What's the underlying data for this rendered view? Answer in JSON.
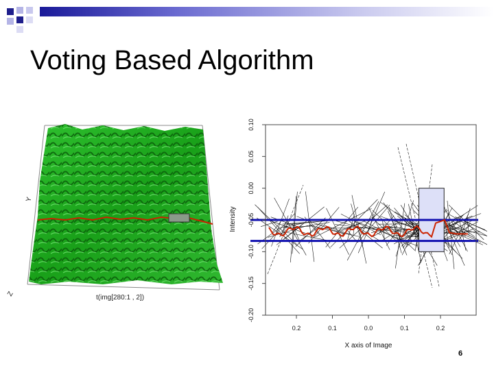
{
  "slide": {
    "title": "Voting Based Algorithm",
    "page_number": "6"
  },
  "colors": {
    "accent_dark": "#1a1a99",
    "deco_blue": "#1e1e8c",
    "deco_light": "#b4b4e6",
    "terrain_green": "#1faa1f",
    "profile_red": "#cc2200",
    "band_blue": "#1010b0",
    "window_fill": "#dde0f8"
  },
  "surface_plot": {
    "axis_labels": {
      "y": "Y",
      "z": "Z",
      "x": "t(img[280:1 , 2])"
    }
  },
  "chart_data": {
    "type": "line",
    "xlabel": "X axis of Image",
    "ylabel": "Intensity",
    "x_tick_labels": [
      "0.2",
      "0.1",
      "0.0",
      "0.1",
      "0.2"
    ],
    "y_tick_labels": [
      "0.10",
      "0.05",
      "0.00",
      "-0.05",
      "-0.10",
      "-0.15",
      "-0.20"
    ],
    "ylim": [
      -0.2,
      0.1
    ],
    "bands": {
      "upper": -0.05,
      "lower": -0.083
    },
    "window": {
      "x_from": 0.14,
      "x_to": 0.21,
      "y_from": -0.1,
      "y_to": 0.0
    },
    "grid": false
  }
}
